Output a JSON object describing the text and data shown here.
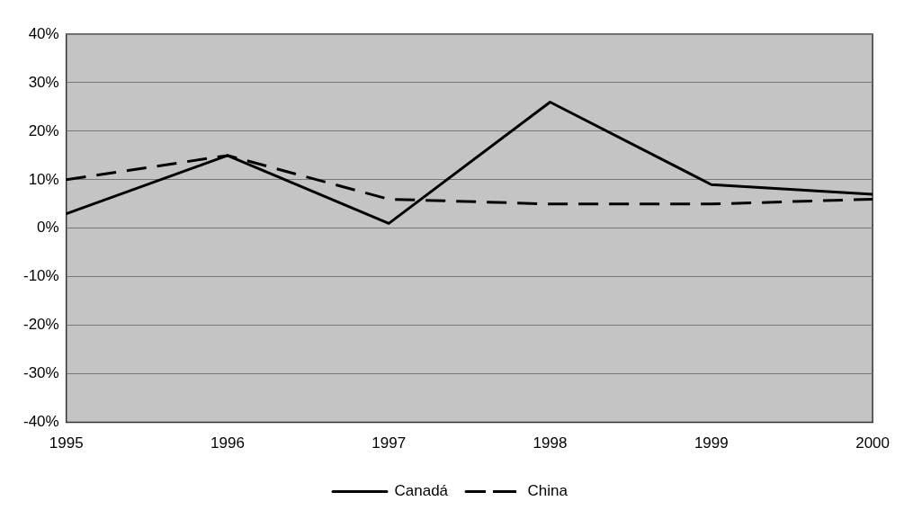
{
  "chart_data": {
    "type": "line",
    "categories": [
      "1995",
      "1996",
      "1997",
      "1998",
      "1999",
      "2000"
    ],
    "series": [
      {
        "name": "Canadá",
        "color": "#000000",
        "values": [
          3,
          15,
          1,
          26,
          9,
          7
        ],
        "line_style": "solid"
      },
      {
        "name": "China",
        "color": "#000000",
        "values": [
          10,
          15,
          6,
          5,
          5,
          6
        ],
        "line_style": "dashed"
      }
    ],
    "ylim": [
      -40,
      40
    ],
    "yticks": [
      {
        "value": -40,
        "label": "-40%"
      },
      {
        "value": -30,
        "label": "-30%"
      },
      {
        "value": -20,
        "label": "-20%"
      },
      {
        "value": -10,
        "label": "-10%"
      },
      {
        "value": 0,
        "label": "0%"
      },
      {
        "value": 10,
        "label": "10%"
      },
      {
        "value": 20,
        "label": "20%"
      },
      {
        "value": 30,
        "label": "30%"
      },
      {
        "value": 40,
        "label": "40%"
      }
    ],
    "grid": "y",
    "legend": "bottom",
    "marker": "none"
  }
}
